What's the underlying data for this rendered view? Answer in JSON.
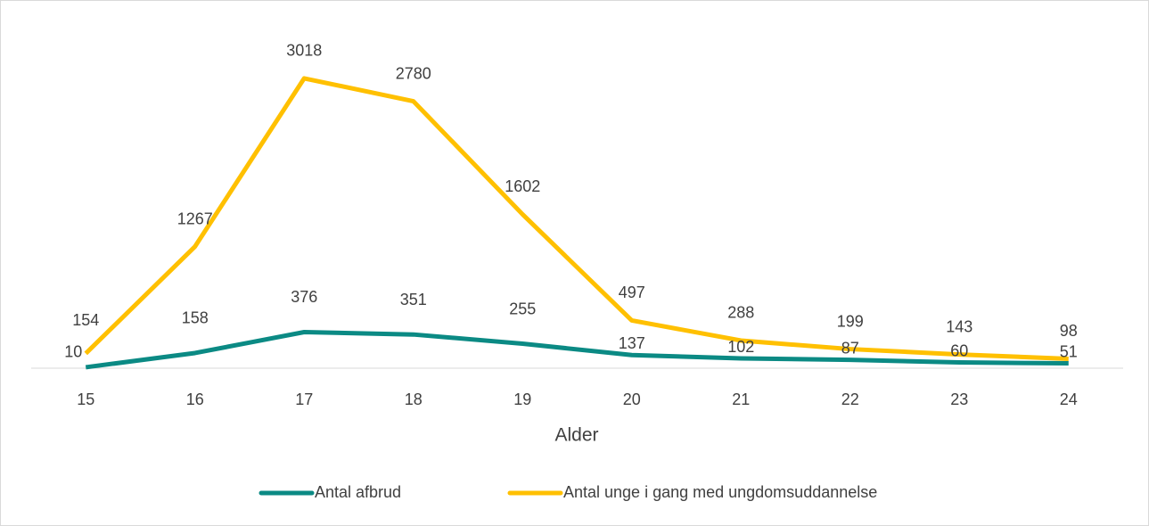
{
  "chart_data": {
    "type": "line",
    "x_label": "Alder",
    "categories": [
      "15",
      "16",
      "17",
      "18",
      "19",
      "20",
      "21",
      "22",
      "23",
      "24"
    ],
    "series": [
      {
        "name": "Antal afbrud",
        "color": "#0b8a84",
        "values": [
          10,
          158,
          376,
          351,
          255,
          137,
          102,
          87,
          60,
          51
        ]
      },
      {
        "name": "Antal unge i gang med ungdomsuddannelse",
        "color": "#ffc000",
        "values": [
          154,
          1267,
          3018,
          2780,
          1602,
          497,
          288,
          199,
          143,
          98
        ]
      }
    ],
    "ylim": [
      0,
      3500
    ],
    "legend": "bottom"
  }
}
